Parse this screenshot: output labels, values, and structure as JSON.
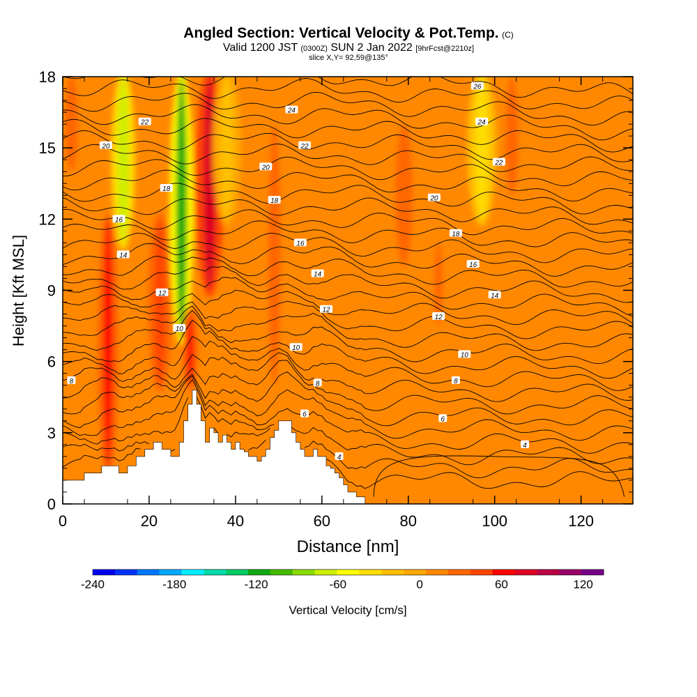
{
  "header": {
    "title_main": "Angled Section: Vertical Velocity & Pot.Temp.",
    "title_unit": "(C)",
    "valid_prefix": "Valid 1200 JST",
    "valid_utc": "(0300Z)",
    "valid_date": "SUN 2 Jan 2022",
    "forecast": "[9hrFcst@2210z]",
    "slice": "slice X,Y= 92,59@135°"
  },
  "chart_data": {
    "type": "heatmap",
    "title": "Angled Section: Vertical Velocity & Pot.Temp. (C)",
    "xlabel": "Distance [nm]",
    "ylabel": "Height [Kft MSL]",
    "xlim": [
      0,
      132
    ],
    "ylim": [
      0,
      18
    ],
    "x_ticks": [
      "0",
      "20",
      "40",
      "60",
      "80",
      "100",
      "120"
    ],
    "x_tick_values": [
      0,
      20,
      40,
      60,
      80,
      100,
      120
    ],
    "y_ticks": [
      "0",
      "3",
      "6",
      "9",
      "12",
      "15",
      "18"
    ],
    "y_tick_values": [
      0,
      3,
      6,
      9,
      12,
      15,
      18
    ],
    "colorbar": {
      "label": "Vertical Velocity [cm/s]",
      "range": [
        -240,
        135
      ],
      "tick_labels": [
        "-240",
        "-180",
        "-120",
        "-60",
        "0",
        "60",
        "120"
      ],
      "tick_values": [
        -240,
        -180,
        -120,
        -60,
        0,
        60,
        120
      ],
      "colors": [
        "#0000ee",
        "#0033ff",
        "#0077ff",
        "#00aaff",
        "#00eeff",
        "#00ddaa",
        "#00cc66",
        "#11aa11",
        "#44bb00",
        "#88dd00",
        "#ccee00",
        "#ffff00",
        "#ffdd00",
        "#ffc000",
        "#ffa800",
        "#ff8800",
        "#ff6600",
        "#ff4400",
        "#ff0000",
        "#dd0022",
        "#bb0044",
        "#990066",
        "#770088"
      ]
    },
    "velocity_bands": [
      {
        "x": 10.5,
        "width": 2.2,
        "y0": 1.5,
        "y1": 12,
        "value": 55
      },
      {
        "x": 14,
        "width": 2.5,
        "y0": 11,
        "y1": 18,
        "value": -70
      },
      {
        "x": 22.5,
        "width": 2.5,
        "y0": 5,
        "y1": 12,
        "value": 45
      },
      {
        "x": 27.5,
        "width": 2.5,
        "y0": 7,
        "y1": 18,
        "value": -110
      },
      {
        "x": 29.5,
        "width": 1.6,
        "y0": 5,
        "y1": 8,
        "value": 60
      },
      {
        "x": 34,
        "width": 3,
        "y0": 9,
        "y1": 18,
        "value": 70
      },
      {
        "x": 49,
        "width": 3,
        "y0": 5,
        "y1": 16,
        "value": 30
      },
      {
        "x": 79,
        "width": 4,
        "y0": 10,
        "y1": 16,
        "value": 35
      },
      {
        "x": 87,
        "width": 2,
        "y0": 7.5,
        "y1": 11,
        "value": 35
      },
      {
        "x": 104,
        "width": 3,
        "y0": 13,
        "y1": 18,
        "value": 30
      },
      {
        "x": 2,
        "width": 3,
        "y0": 14,
        "y1": 18,
        "value": 25
      },
      {
        "x": 38,
        "width": 3,
        "y0": 12,
        "y1": 18,
        "value": -20
      },
      {
        "x": 97,
        "width": 3,
        "y0": 12,
        "y1": 18,
        "value": -40
      }
    ],
    "terrain": [
      [
        0,
        1.0
      ],
      [
        4,
        1.0
      ],
      [
        5,
        1.3
      ],
      [
        8,
        1.3
      ],
      [
        9,
        1.6
      ],
      [
        12,
        1.6
      ],
      [
        13,
        1.3
      ],
      [
        14,
        1.3
      ],
      [
        15,
        1.6
      ],
      [
        16,
        1.6
      ],
      [
        17,
        2.0
      ],
      [
        18,
        2.0
      ],
      [
        19,
        2.3
      ],
      [
        20,
        2.3
      ],
      [
        21,
        2.6
      ],
      [
        22,
        2.6
      ],
      [
        23,
        2.3
      ],
      [
        24,
        2.3
      ],
      [
        25,
        2.0
      ],
      [
        26,
        2.0
      ],
      [
        27,
        2.6
      ],
      [
        28,
        3.5
      ],
      [
        29,
        4.2
      ],
      [
        30,
        4.8
      ],
      [
        31,
        4.2
      ],
      [
        32,
        3.5
      ],
      [
        33,
        2.6
      ],
      [
        34,
        3.2
      ],
      [
        35,
        3.0
      ],
      [
        36,
        2.6
      ],
      [
        37,
        2.9
      ],
      [
        38,
        2.6
      ],
      [
        39,
        2.3
      ],
      [
        40,
        2.6
      ],
      [
        41,
        2.3
      ],
      [
        42,
        2.2
      ],
      [
        43,
        2.0
      ],
      [
        45,
        1.8
      ],
      [
        46,
        2.0
      ],
      [
        47,
        2.3
      ],
      [
        48,
        2.8
      ],
      [
        49,
        3.1
      ],
      [
        50,
        3.5
      ],
      [
        52,
        3.5
      ],
      [
        53,
        3.0
      ],
      [
        54,
        2.6
      ],
      [
        55,
        2.3
      ],
      [
        56,
        2.0
      ],
      [
        57,
        2.0
      ],
      [
        58,
        2.3
      ],
      [
        59,
        2.0
      ],
      [
        60,
        2.0
      ],
      [
        61,
        1.6
      ],
      [
        62,
        1.5
      ],
      [
        63,
        1.3
      ],
      [
        64,
        1.1
      ],
      [
        65,
        0.8
      ],
      [
        66,
        0.5
      ],
      [
        67,
        0.5
      ],
      [
        68,
        0.3
      ],
      [
        69,
        0.3
      ],
      [
        70,
        0.0
      ],
      [
        132,
        0.0
      ]
    ],
    "isentropes": [
      {
        "label": "4",
        "baseline": 0.9,
        "label_at": [
          64,
          2.0
        ]
      },
      {
        "label": "4",
        "baseline": 1.8,
        "label_at": [
          107,
          2.5
        ]
      },
      {
        "label": "6",
        "baseline": 2.8,
        "label_at": [
          56,
          3.8
        ]
      },
      {
        "label": "6",
        "baseline": 3.4,
        "label_at": [
          88,
          3.6
        ]
      },
      {
        "label": "8",
        "baseline": 4.8,
        "label_at": [
          2,
          5.2
        ]
      },
      {
        "label": "8",
        "baseline": 4.9,
        "label_at": [
          59,
          5.1
        ]
      },
      {
        "label": "8",
        "baseline": 4.8,
        "label_at": [
          91,
          5.2
        ]
      },
      {
        "label": "10",
        "baseline": 6.0,
        "label_at": [
          27,
          7.4
        ]
      },
      {
        "label": "10",
        "baseline": 6.0,
        "label_at": [
          54,
          6.6
        ]
      },
      {
        "label": "10",
        "baseline": 6.2,
        "label_at": [
          93,
          6.3
        ]
      },
      {
        "label": "12",
        "baseline": 8.0,
        "label_at": [
          23,
          8.9
        ]
      },
      {
        "label": "12",
        "baseline": 8.0,
        "label_at": [
          61,
          8.2
        ]
      },
      {
        "label": "12",
        "baseline": 7.9,
        "label_at": [
          87,
          7.9
        ]
      },
      {
        "label": "14",
        "baseline": 9.6,
        "label_at": [
          14,
          10.5
        ]
      },
      {
        "label": "14",
        "baseline": 9.5,
        "label_at": [
          59,
          9.7
        ]
      },
      {
        "label": "14",
        "baseline": 8.8,
        "label_at": [
          100,
          8.8
        ]
      },
      {
        "label": "16",
        "baseline": 10.5,
        "label_at": [
          13,
          12.0
        ]
      },
      {
        "label": "16",
        "baseline": 10.5,
        "label_at": [
          55,
          11.0
        ]
      },
      {
        "label": "16",
        "baseline": 10.0,
        "label_at": [
          95,
          10.1
        ]
      },
      {
        "label": "18",
        "baseline": 12.0,
        "label_at": [
          24,
          13.3
        ]
      },
      {
        "label": "18",
        "baseline": 12.1,
        "label_at": [
          49,
          12.8
        ]
      },
      {
        "label": "18",
        "baseline": 11.3,
        "label_at": [
          91,
          11.4
        ]
      },
      {
        "label": "20",
        "baseline": 14.0,
        "label_at": [
          10,
          15.1
        ]
      },
      {
        "label": "20",
        "baseline": 13.5,
        "label_at": [
          47,
          14.2
        ]
      },
      {
        "label": "20",
        "baseline": 12.9,
        "label_at": [
          86,
          12.9
        ]
      },
      {
        "label": "22",
        "baseline": 15.2,
        "label_at": [
          19,
          16.1
        ]
      },
      {
        "label": "22",
        "baseline": 14.8,
        "label_at": [
          56,
          15.1
        ]
      },
      {
        "label": "22",
        "baseline": 14.4,
        "label_at": [
          101,
          14.4
        ]
      },
      {
        "label": "24",
        "baseline": 16.0,
        "label_at": [
          53,
          16.6
        ]
      },
      {
        "label": "24",
        "baseline": 16.0,
        "label_at": [
          97,
          16.1
        ]
      },
      {
        "label": "26",
        "baseline": 17.5,
        "label_at": [
          96,
          17.6
        ]
      }
    ],
    "grid": false,
    "legend": "colorbar-bottom"
  }
}
